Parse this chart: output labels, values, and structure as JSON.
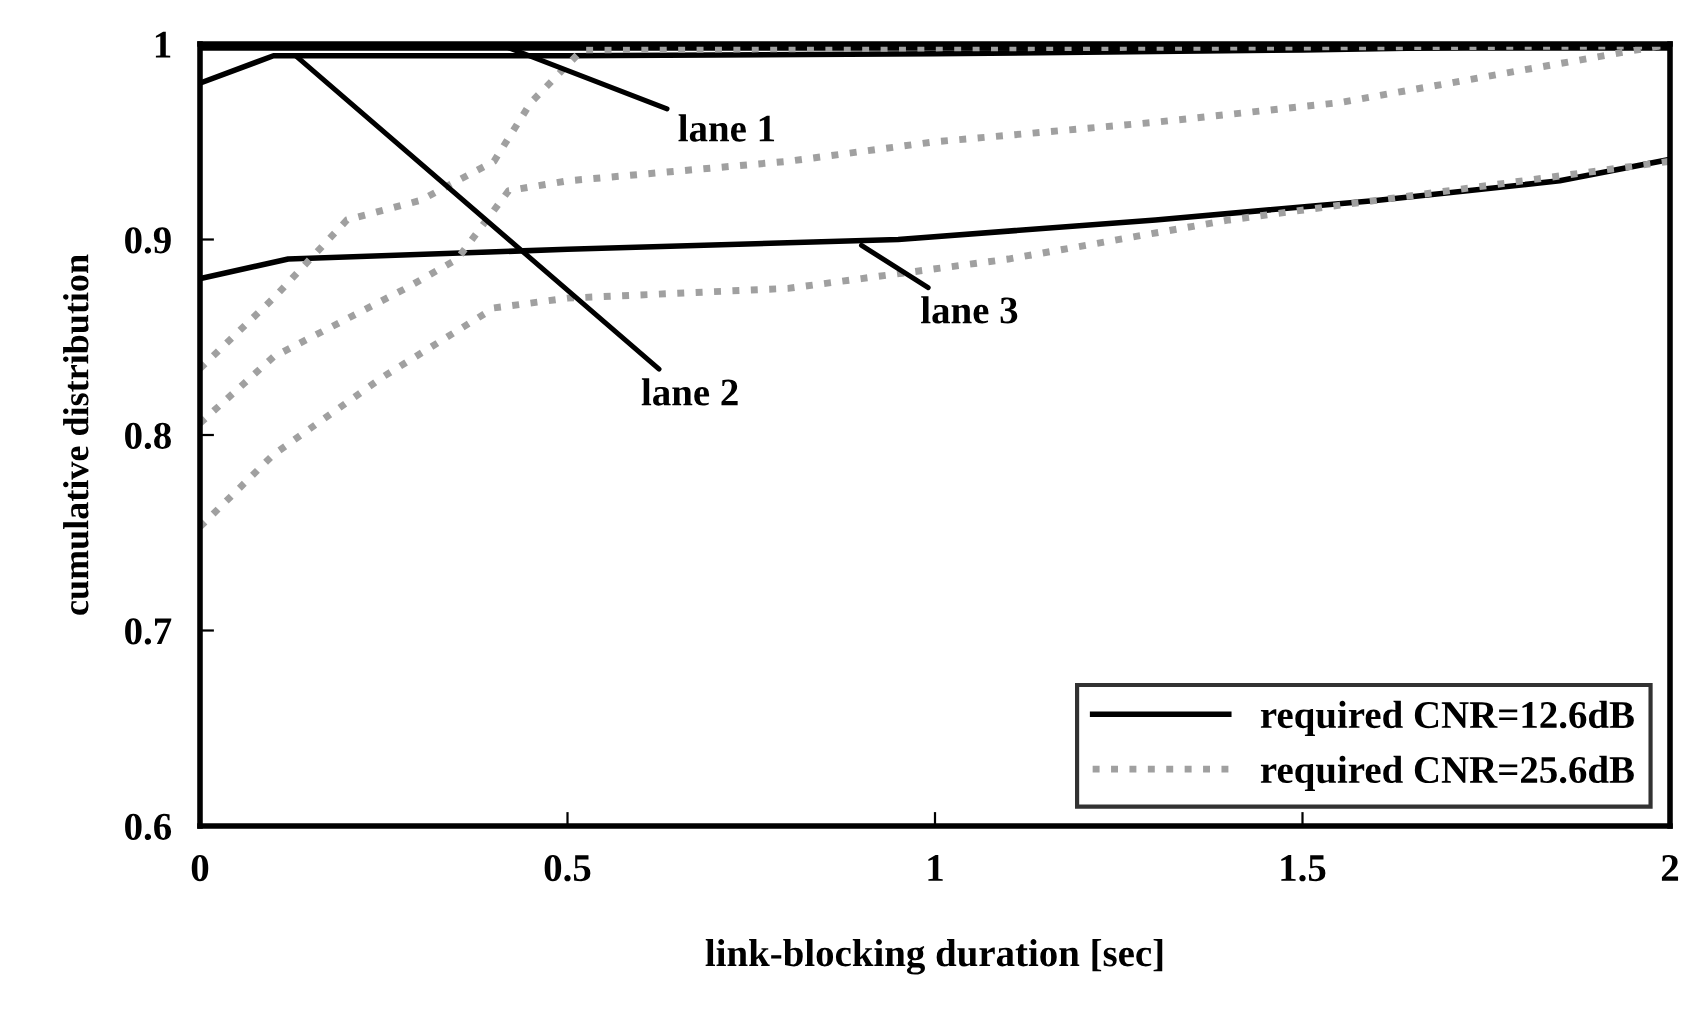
{
  "chart_data": {
    "type": "line",
    "xlabel": "link-blocking duration [sec]",
    "ylabel": "cumulative distribution",
    "xlim": [
      0,
      2
    ],
    "ylim": [
      0.6,
      1
    ],
    "xticks": [
      0,
      0.5,
      1,
      1.5,
      2
    ],
    "yticks": [
      0.6,
      0.7,
      0.8,
      0.9,
      1
    ],
    "grid": false,
    "legend": "bottom right",
    "marker": "none",
    "series": [
      {
        "name": "required CNR=12.6dB",
        "color": "#000000",
        "line_style": "solid",
        "x": [
          0,
          2
        ],
        "values": [
          0.998,
          0.998
        ]
      },
      {
        "color": "#000000",
        "line_style": "solid",
        "x": [
          0,
          0.1,
          0.5,
          1.0,
          1.5,
          2
        ],
        "values": [
          0.98,
          0.994,
          0.994,
          0.995,
          0.997,
          1.0
        ]
      },
      {
        "color": "#000000",
        "line_style": "solid",
        "x": [
          0,
          0.12,
          0.5,
          0.95,
          1.3,
          1.6,
          1.85,
          2
        ],
        "values": [
          0.88,
          0.89,
          0.895,
          0.9,
          0.91,
          0.92,
          0.93,
          0.941
        ]
      },
      {
        "name": "required CNR=25.6dB",
        "color": "#a0a0a0",
        "line_style": "dotted",
        "x": [
          0,
          0.1,
          0.2,
          0.3,
          0.4,
          0.45,
          0.52,
          1.0,
          2
        ],
        "values": [
          0.834,
          0.87,
          0.91,
          0.92,
          0.94,
          0.97,
          0.997,
          0.998,
          0.999
        ]
      },
      {
        "color": "#a0a0a0",
        "line_style": "dotted",
        "x": [
          0,
          0.1,
          0.28,
          0.35,
          0.42,
          0.5,
          0.8,
          1.0,
          1.3,
          1.55,
          1.85,
          2
        ],
        "values": [
          0.806,
          0.84,
          0.875,
          0.89,
          0.925,
          0.93,
          0.94,
          0.95,
          0.96,
          0.97,
          0.99,
          1.0
        ]
      },
      {
        "color": "#a0a0a0",
        "line_style": "dotted",
        "x": [
          0,
          0.1,
          0.25,
          0.4,
          0.5,
          0.8,
          0.9,
          1.1,
          1.4,
          1.6,
          2
        ],
        "values": [
          0.753,
          0.79,
          0.83,
          0.865,
          0.87,
          0.875,
          0.88,
          0.89,
          0.91,
          0.92,
          0.94
        ]
      }
    ],
    "annotations": [
      {
        "text": "lane 1",
        "x": 0.42,
        "y": 0.998
      },
      {
        "text": "lane 2",
        "x": 0.13,
        "y": 0.994
      },
      {
        "text": "lane 3",
        "x": 0.9,
        "y": 0.897
      }
    ]
  }
}
